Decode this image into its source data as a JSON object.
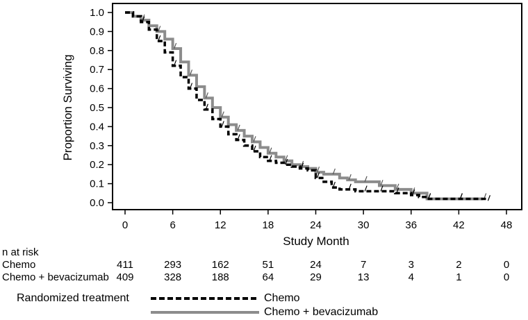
{
  "chart_data": {
    "type": "line",
    "title": "",
    "xlabel": "Study Month",
    "ylabel": "Proportion Surviving",
    "xlim": [
      0,
      48
    ],
    "ylim": [
      0,
      1.0
    ],
    "xticks": [
      "0",
      "6",
      "12",
      "18",
      "24",
      "30",
      "36",
      "42",
      "48"
    ],
    "yticks": [
      "0.0",
      "0.1",
      "0.2",
      "0.3",
      "0.4",
      "0.5",
      "0.6",
      "0.7",
      "0.8",
      "0.9",
      "1.0"
    ],
    "grid": false,
    "legend": {
      "title": "Randomized treatment",
      "position": "bottom",
      "entries": [
        "Chemo",
        "Chemo + bevacizumab"
      ]
    },
    "series": [
      {
        "name": "Chemo",
        "style": "dashed",
        "color": "#000000",
        "x": [
          0,
          1,
          2,
          3,
          4,
          5,
          6,
          7,
          8,
          9,
          10,
          11,
          12,
          13,
          14,
          15,
          16,
          17,
          18,
          19,
          20,
          21,
          22,
          23,
          24,
          25,
          26,
          27,
          28,
          29,
          30,
          31,
          32,
          33,
          34,
          35,
          36,
          37,
          38,
          40,
          42,
          44,
          45.5
        ],
        "y": [
          1.0,
          0.98,
          0.95,
          0.91,
          0.85,
          0.79,
          0.72,
          0.66,
          0.6,
          0.54,
          0.49,
          0.44,
          0.4,
          0.36,
          0.33,
          0.3,
          0.27,
          0.24,
          0.22,
          0.21,
          0.2,
          0.19,
          0.18,
          0.17,
          0.13,
          0.11,
          0.08,
          0.07,
          0.07,
          0.06,
          0.06,
          0.06,
          0.06,
          0.06,
          0.05,
          0.05,
          0.04,
          0.03,
          0.02,
          0.02,
          0.02,
          0.02,
          0.01
        ]
      },
      {
        "name": "Chemo + bevacizumab",
        "style": "solid",
        "color": "#8c8c8c",
        "x": [
          0,
          1,
          2,
          3,
          4,
          5,
          6,
          7,
          8,
          9,
          10,
          11,
          12,
          13,
          14,
          15,
          16,
          17,
          18,
          19,
          20,
          21,
          22,
          23,
          24,
          25,
          26,
          27,
          28,
          29,
          30,
          31,
          32,
          33,
          34,
          35,
          36,
          37,
          38,
          40,
          42,
          44,
          45
        ],
        "y": [
          1.0,
          0.98,
          0.96,
          0.93,
          0.9,
          0.86,
          0.81,
          0.74,
          0.67,
          0.61,
          0.55,
          0.5,
          0.45,
          0.41,
          0.38,
          0.35,
          0.32,
          0.29,
          0.26,
          0.24,
          0.22,
          0.2,
          0.19,
          0.18,
          0.16,
          0.15,
          0.15,
          0.13,
          0.12,
          0.11,
          0.11,
          0.11,
          0.09,
          0.09,
          0.07,
          0.07,
          0.05,
          0.05,
          0.02,
          0.02,
          0.02,
          0.02,
          0.02
        ]
      }
    ],
    "n_at_risk": {
      "title": "n at risk",
      "timepoints": [
        0,
        6,
        12,
        18,
        24,
        30,
        36,
        42,
        48
      ],
      "rows": [
        {
          "label": "Chemo",
          "values": [
            "411",
            "293",
            "162",
            "51",
            "24",
            "7",
            "3",
            "2",
            "0"
          ]
        },
        {
          "label": "Chemo + bevacizumab",
          "values": [
            "409",
            "328",
            "188",
            "64",
            "29",
            "13",
            "4",
            "1",
            "0"
          ]
        }
      ]
    }
  }
}
